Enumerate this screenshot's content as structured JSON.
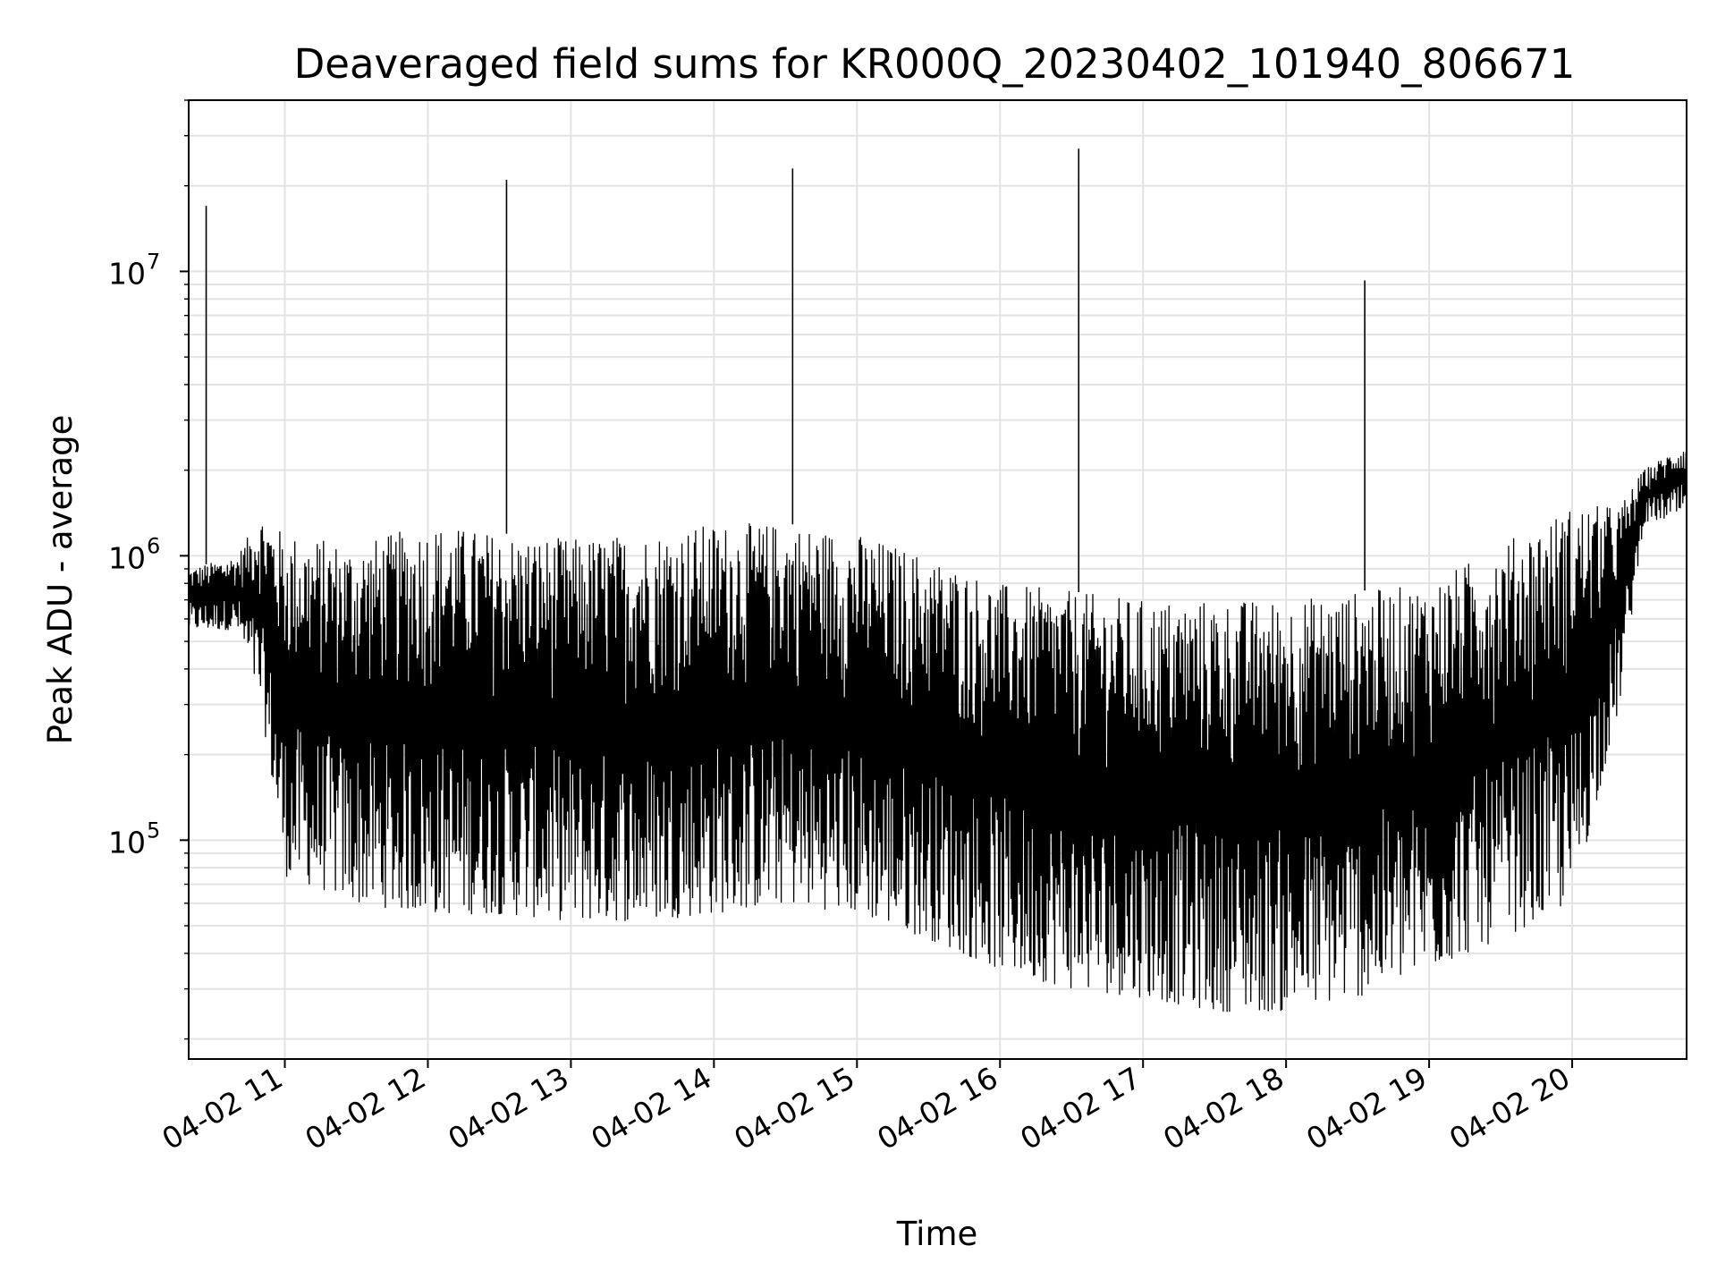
{
  "chart_data": {
    "type": "line",
    "title": "Deaveraged field sums for KR000Q_20230402_101940_806671",
    "xlabel": "Time",
    "ylabel": "Peak ADU - average",
    "y_scale": "log",
    "xlim": [
      "2023-04-02T10:19:40",
      "2023-04-02T20:48:00"
    ],
    "ylim": [
      17000,
      40000000
    ],
    "grid": true,
    "line_color": "#000000",
    "x_ticks": [
      {
        "t": "2023-04-02T11:00",
        "label": "04-02 11"
      },
      {
        "t": "2023-04-02T12:00",
        "label": "04-02 12"
      },
      {
        "t": "2023-04-02T13:00",
        "label": "04-02 13"
      },
      {
        "t": "2023-04-02T14:00",
        "label": "04-02 14"
      },
      {
        "t": "2023-04-02T15:00",
        "label": "04-02 15"
      },
      {
        "t": "2023-04-02T16:00",
        "label": "04-02 16"
      },
      {
        "t": "2023-04-02T17:00",
        "label": "04-02 17"
      },
      {
        "t": "2023-04-02T18:00",
        "label": "04-02 18"
      },
      {
        "t": "2023-04-02T19:00",
        "label": "04-02 19"
      },
      {
        "t": "2023-04-02T20:00",
        "label": "04-02 20"
      }
    ],
    "y_ticks": [
      {
        "value": 100000,
        "base": "10",
        "exp": "5"
      },
      {
        "value": 1000000,
        "base": "10",
        "exp": "6"
      },
      {
        "value": 10000000,
        "base": "10",
        "exp": "7"
      }
    ],
    "spikes": [
      {
        "t": "2023-04-02T10:27",
        "y": 17000000
      },
      {
        "t": "2023-04-02T12:33",
        "y": 21000000
      },
      {
        "t": "2023-04-02T14:33",
        "y": 23000000
      },
      {
        "t": "2023-04-02T16:33",
        "y": 27000000
      },
      {
        "t": "2023-04-02T18:33",
        "y": 9300000
      }
    ],
    "envelope": {
      "time": [
        "2023-04-02T10:20",
        "2023-04-02T10:40",
        "2023-04-02T10:50",
        "2023-04-02T11:00",
        "2023-04-02T11:30",
        "2023-04-02T12:00",
        "2023-04-02T12:30",
        "2023-04-02T13:00",
        "2023-04-02T13:30",
        "2023-04-02T14:00",
        "2023-04-02T14:30",
        "2023-04-02T15:00",
        "2023-04-02T15:30",
        "2023-04-02T16:00",
        "2023-04-02T16:30",
        "2023-04-02T17:00",
        "2023-04-02T17:30",
        "2023-04-02T18:00",
        "2023-04-02T18:30",
        "2023-04-02T19:00",
        "2023-04-02T19:30",
        "2023-04-02T20:00",
        "2023-04-02T20:20",
        "2023-04-02T20:30",
        "2023-04-02T20:48"
      ],
      "upper": [
        900000,
        1000000,
        1400000,
        1200000,
        1100000,
        1300000,
        1200000,
        1150000,
        1200000,
        1300000,
        1300000,
        1200000,
        1000000,
        800000,
        750000,
        700000,
        700000,
        700000,
        750000,
        800000,
        1100000,
        1500000,
        1500000,
        2000000,
        2500000
      ],
      "lower": [
        550000,
        550000,
        300000,
        75000,
        60000,
        55000,
        55000,
        52000,
        52000,
        55000,
        60000,
        55000,
        45000,
        35000,
        30000,
        28000,
        25000,
        25000,
        28000,
        35000,
        45000,
        60000,
        300000,
        1300000,
        1400000
      ]
    }
  }
}
